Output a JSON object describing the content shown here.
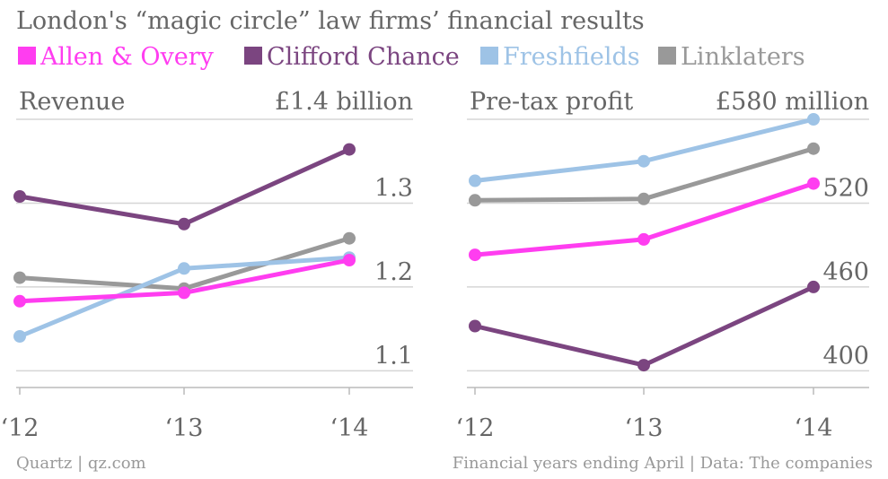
{
  "title": "London's “magic circle” law firms’ financial results",
  "legend": [
    {
      "name": "Allen & Overy",
      "color": "#ff3df0"
    },
    {
      "name": "Clifford Chance",
      "color": "#7b4580"
    },
    {
      "name": "Freshfields",
      "color": "#9ec3e6"
    },
    {
      "name": "Linklaters",
      "color": "#999999"
    }
  ],
  "footer": {
    "source_left": "Quartz | qz.com",
    "source_right": "Financial years ending April | Data: The companies"
  },
  "chart_data": [
    {
      "type": "line",
      "title": "Revenue",
      "top_label": "£1.4 billion",
      "categories": [
        "‘12",
        "‘13",
        "‘14"
      ],
      "yticks": [
        {
          "value": 1.1,
          "label": "1.1"
        },
        {
          "value": 1.2,
          "label": "1.2"
        },
        {
          "value": 1.3,
          "label": "1.3"
        },
        {
          "value": 1.4,
          "label": ""
        }
      ],
      "ylim": [
        1.08,
        1.4
      ],
      "grid": true,
      "series": [
        {
          "name": "Linklaters",
          "color": "#999999",
          "values": [
            1.211,
            1.198,
            1.258
          ]
        },
        {
          "name": "Freshfields",
          "color": "#9ec3e6",
          "values": [
            1.141,
            1.222,
            1.235
          ]
        },
        {
          "name": "Allen & Overy",
          "color": "#ff3df0",
          "values": [
            1.183,
            1.193,
            1.232
          ]
        },
        {
          "name": "Clifford Chance",
          "color": "#7b4580",
          "values": [
            1.308,
            1.275,
            1.364
          ]
        }
      ]
    },
    {
      "type": "line",
      "title": "Pre-tax profit",
      "top_label": "£580 million",
      "categories": [
        "‘12",
        "‘13",
        "‘14"
      ],
      "yticks": [
        {
          "value": 400,
          "label": "400"
        },
        {
          "value": 460,
          "label": "460"
        },
        {
          "value": 520,
          "label": "520"
        },
        {
          "value": 580,
          "label": ""
        }
      ],
      "ylim": [
        388,
        580
      ],
      "grid": true,
      "series": [
        {
          "name": "Linklaters",
          "color": "#999999",
          "values": [
            522,
            523,
            559
          ]
        },
        {
          "name": "Freshfields",
          "color": "#9ec3e6",
          "values": [
            536,
            550,
            580
          ]
        },
        {
          "name": "Allen & Overy",
          "color": "#ff3df0",
          "values": [
            483,
            494,
            534
          ]
        },
        {
          "name": "Clifford Chance",
          "color": "#7b4580",
          "values": [
            432,
            404,
            460
          ]
        }
      ]
    }
  ]
}
